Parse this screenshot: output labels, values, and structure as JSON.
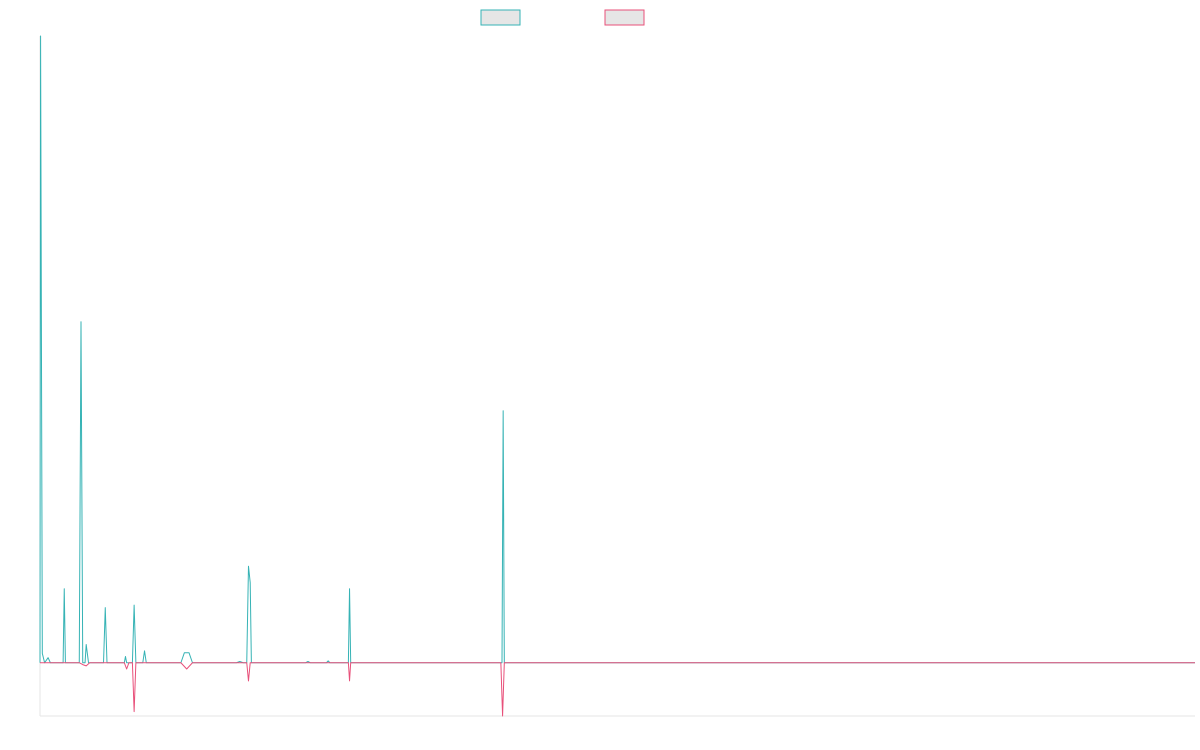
{
  "chart_data": {
    "type": "line",
    "title": "",
    "xlabel": "",
    "ylabel": "",
    "xlim": [
      0,
      1000
    ],
    "ylim": [
      -8.5,
      100
    ],
    "grid": false,
    "legend_position": "top-center",
    "series": [
      {
        "color": "#36b3b5",
        "points": [
          [
            0,
            0
          ],
          [
            0.5,
            100
          ],
          [
            2,
            1.5
          ],
          [
            4,
            0
          ],
          [
            7,
            0.8
          ],
          [
            9,
            0
          ],
          [
            20,
            0
          ],
          [
            21,
            11.8
          ],
          [
            22,
            0
          ],
          [
            34,
            0
          ],
          [
            35.5,
            54.4
          ],
          [
            37,
            0
          ],
          [
            39,
            0
          ],
          [
            40,
            2.9
          ],
          [
            42,
            0
          ],
          [
            55,
            0
          ],
          [
            56.5,
            8.8
          ],
          [
            58,
            0
          ],
          [
            73,
            0
          ],
          [
            74,
            1
          ],
          [
            75,
            0
          ],
          [
            80,
            0
          ],
          [
            81.5,
            9.2
          ],
          [
            83,
            0
          ],
          [
            89,
            0
          ],
          [
            90.5,
            1.9
          ],
          [
            92,
            0
          ],
          [
            122,
            0
          ],
          [
            125,
            1.6
          ],
          [
            129,
            1.6
          ],
          [
            132,
            0
          ],
          [
            170,
            0
          ],
          [
            173,
            0.2
          ],
          [
            176,
            0
          ],
          [
            179,
            0
          ],
          [
            180.5,
            15.4
          ],
          [
            182,
            12.8
          ],
          [
            183,
            0
          ],
          [
            230,
            0
          ],
          [
            232,
            0.2
          ],
          [
            234,
            0
          ],
          [
            248,
            0
          ],
          [
            249.5,
            0.3
          ],
          [
            251,
            0
          ],
          [
            267,
            0
          ],
          [
            268,
            11.8
          ],
          [
            269,
            0
          ],
          [
            400,
            0
          ],
          [
            401,
            40.2
          ],
          [
            402,
            0
          ],
          [
            1000,
            0
          ]
        ]
      },
      {
        "color": "#e8507a",
        "points": [
          [
            0,
            0
          ],
          [
            34,
            0
          ],
          [
            37,
            -0.3
          ],
          [
            40,
            -0.5
          ],
          [
            43,
            0
          ],
          [
            73,
            0
          ],
          [
            75,
            -1
          ],
          [
            77,
            0
          ],
          [
            80,
            0
          ],
          [
            81.5,
            -7.8
          ],
          [
            83,
            0
          ],
          [
            122,
            0
          ],
          [
            127,
            -1
          ],
          [
            132,
            0
          ],
          [
            179,
            0
          ],
          [
            180.5,
            -2.9
          ],
          [
            182,
            0
          ],
          [
            267,
            0
          ],
          [
            268,
            -2.9
          ],
          [
            269,
            0
          ],
          [
            399,
            0
          ],
          [
            400.5,
            -8.5
          ],
          [
            402,
            0
          ],
          [
            1000,
            0
          ]
        ]
      }
    ]
  }
}
